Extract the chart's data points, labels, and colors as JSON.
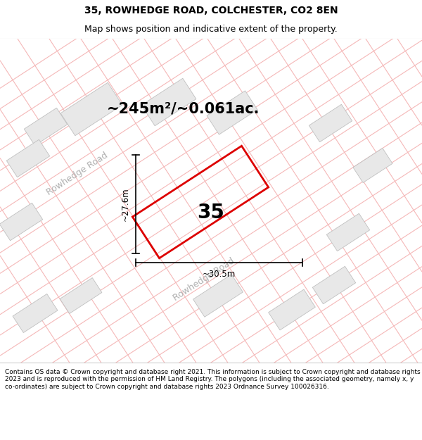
{
  "title_line1": "35, ROWHEDGE ROAD, COLCHESTER, CO2 8EN",
  "title_line2": "Map shows position and indicative extent of the property.",
  "area_label": "~245m²/~0.061ac.",
  "property_number": "35",
  "dim1_label": "~27.6m",
  "dim2_label": "~30.5m",
  "road_label1": "Rowhedge Road",
  "road_label2": "Rowhedge Road",
  "footer_text": "Contains OS data © Crown copyright and database right 2021. This information is subject to Crown copyright and database rights 2023 and is reproduced with the permission of HM Land Registry. The polygons (including the associated geometry, namely x, y co-ordinates) are subject to Crown copyright and database rights 2023 Ordnance Survey 100026316.",
  "map_bg": "#ffffff",
  "plot_outline_color": "#dd0000",
  "building_fill": "#e8e8e8",
  "building_edge": "#c0c0c0",
  "road_line_color": "#f5b8b8",
  "road_label_color": "#b0b0b0",
  "white_bg": "#ffffff",
  "title_fs": 10,
  "subtitle_fs": 9,
  "area_fs": 15,
  "number_fs": 20,
  "dim_fs": 8.5,
  "road_fs": 9,
  "footer_fs": 6.5
}
